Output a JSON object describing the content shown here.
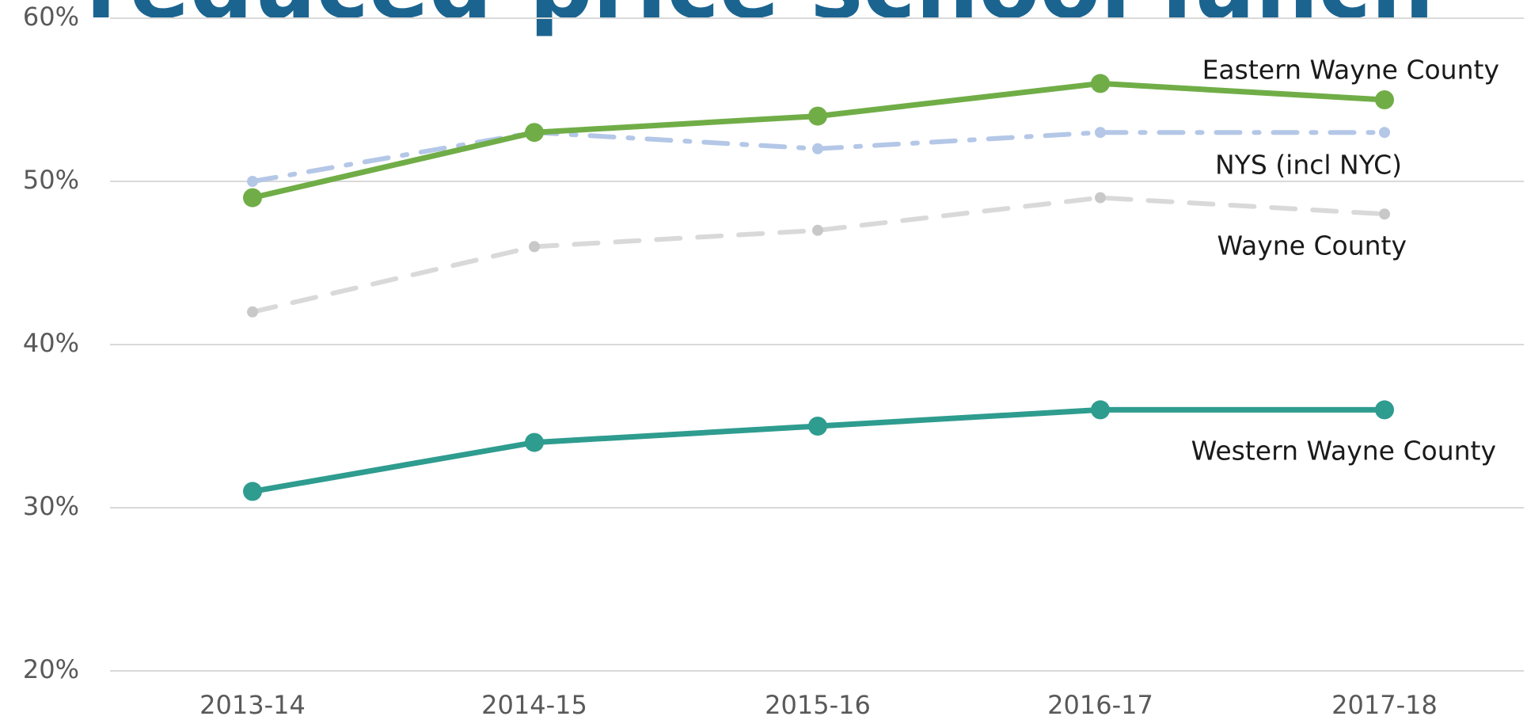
{
  "chart_data": {
    "type": "line",
    "title": "reduced-price school lunch",
    "categories": [
      "2013-14",
      "2014-15",
      "2015-16",
      "2016-17",
      "2017-18"
    ],
    "series": [
      {
        "name": "Eastern Wayne County",
        "color": "#70ad47",
        "dash": "solid",
        "values": [
          49,
          53,
          54,
          56,
          55
        ]
      },
      {
        "name": "NYS (incl NYC)",
        "color": "#b4c7e7",
        "dash": "dashdot",
        "values": [
          50,
          53,
          52,
          53,
          53
        ]
      },
      {
        "name": "Wayne County",
        "color": "#d9d9d9",
        "dash": "dashed",
        "values": [
          42,
          46,
          47,
          49,
          48
        ]
      },
      {
        "name": "Western Wayne County",
        "color": "#2e9c8f",
        "dash": "solid",
        "values": [
          31,
          34,
          35,
          36,
          36
        ]
      }
    ],
    "ylim": [
      20,
      60
    ],
    "yticks": [
      {
        "value": 20,
        "label": "20%"
      },
      {
        "value": 30,
        "label": "30%"
      },
      {
        "value": 40,
        "label": "40%"
      },
      {
        "value": 50,
        "label": "50%"
      },
      {
        "value": 60,
        "label": "60%"
      }
    ],
    "grid": true
  }
}
